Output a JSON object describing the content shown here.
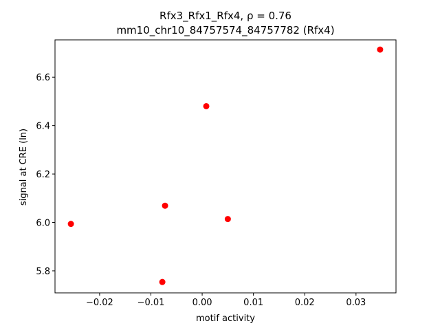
{
  "chart_data": {
    "type": "scatter",
    "title": "Rfx3_Rfx1_Rfx4, ρ = 0.76",
    "subtitle": "mm10_chr10_84757574_84757782 (Rfx4)",
    "x_label": "motif activity",
    "y_label": "signal at CRE (ln)",
    "color": "#ff0000",
    "x": [
      -0.0256,
      -0.00724,
      -0.00777,
      0.0008,
      0.005,
      0.0347
    ],
    "values": [
      5.994,
      6.069,
      5.754,
      6.48,
      6.014,
      6.714
    ],
    "xlim": [
      -0.0287,
      0.0378
    ],
    "ylim": [
      5.709,
      6.754
    ],
    "xticks": [
      {
        "value": -0.02,
        "label": "−0.02"
      },
      {
        "value": -0.01,
        "label": "−0.01"
      },
      {
        "value": 0,
        "label": "0.00"
      },
      0.01,
      0.02,
      0.03
    ],
    "yticks": [
      5.8,
      {
        "value": 6,
        "label": "6.0"
      },
      6.2,
      6.4,
      6.6
    ],
    "grid": false
  }
}
